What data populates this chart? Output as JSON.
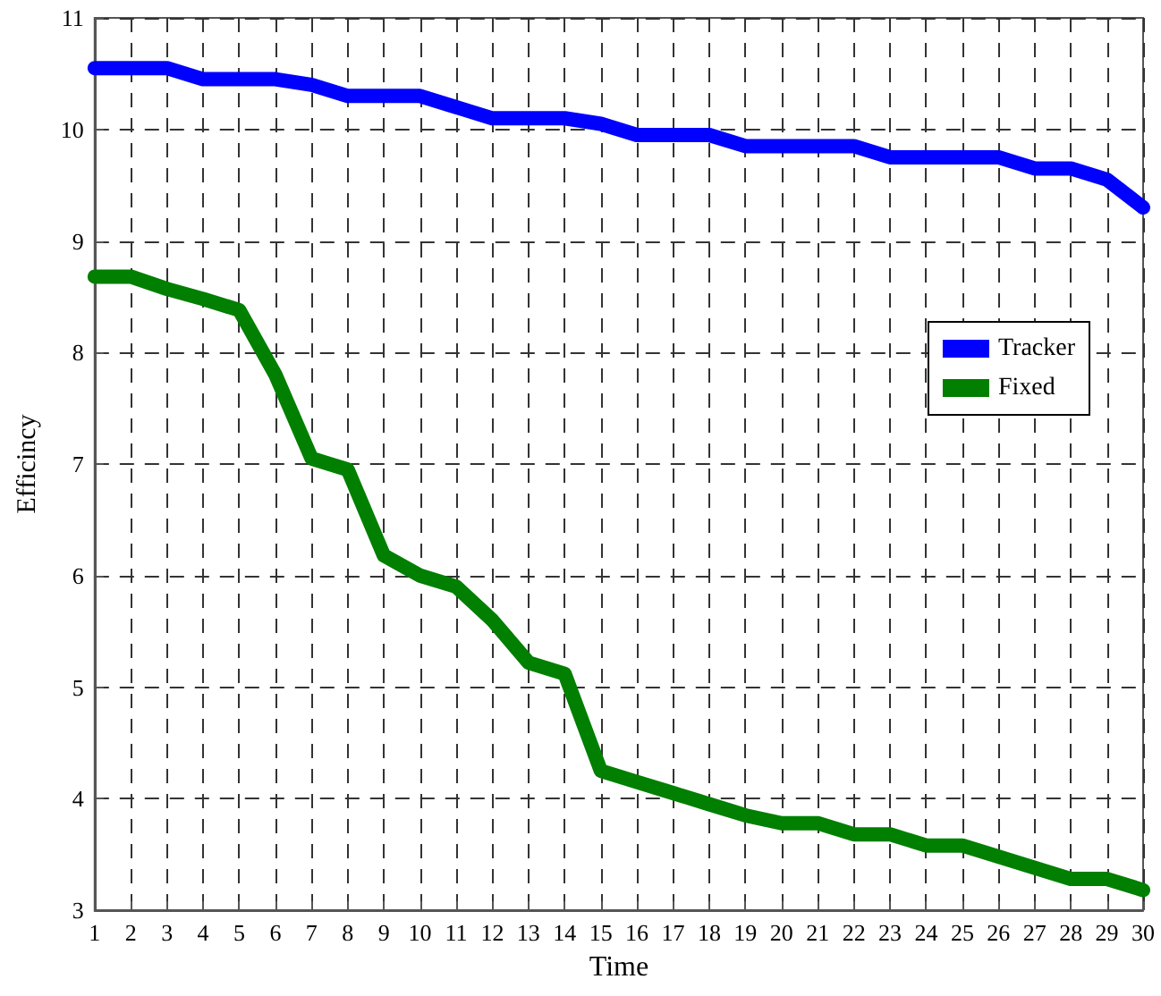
{
  "chart_data": {
    "type": "line",
    "xlabel": "Time",
    "ylabel": "Efficincy",
    "x": [
      1,
      2,
      3,
      4,
      5,
      6,
      7,
      8,
      9,
      10,
      11,
      12,
      13,
      14,
      15,
      16,
      17,
      18,
      19,
      20,
      21,
      22,
      23,
      24,
      25,
      26,
      27,
      28,
      29,
      30
    ],
    "series": [
      {
        "name": "Tracker",
        "color": "#0000ff",
        "values": [
          10.55,
          10.55,
          10.55,
          10.45,
          10.45,
          10.45,
          10.4,
          10.3,
          10.3,
          10.3,
          10.2,
          10.1,
          10.1,
          10.1,
          10.05,
          9.95,
          9.95,
          9.95,
          9.85,
          9.85,
          9.85,
          9.85,
          9.75,
          9.75,
          9.75,
          9.75,
          9.65,
          9.65,
          9.55,
          9.3
        ]
      },
      {
        "name": "Fixed",
        "color": "#007f00",
        "values": [
          8.68,
          8.68,
          8.57,
          8.48,
          8.38,
          7.8,
          7.05,
          6.95,
          6.18,
          6.0,
          5.9,
          5.6,
          5.22,
          5.12,
          4.25,
          4.15,
          4.05,
          3.95,
          3.85,
          3.78,
          3.78,
          3.68,
          3.68,
          3.58,
          3.58,
          3.48,
          3.38,
          3.28,
          3.28,
          3.18
        ]
      }
    ],
    "xlim": [
      1,
      30
    ],
    "xticks": [
      1,
      2,
      3,
      4,
      5,
      6,
      7,
      8,
      9,
      10,
      11,
      12,
      13,
      14,
      15,
      16,
      17,
      18,
      19,
      20,
      21,
      22,
      23,
      24,
      25,
      26,
      27,
      28,
      29,
      30
    ],
    "ylim": [
      3,
      11
    ],
    "yticks": [
      3,
      4,
      5,
      6,
      7,
      8,
      9,
      10,
      11
    ],
    "grid": true,
    "legend": "right",
    "line_style": "solid"
  }
}
